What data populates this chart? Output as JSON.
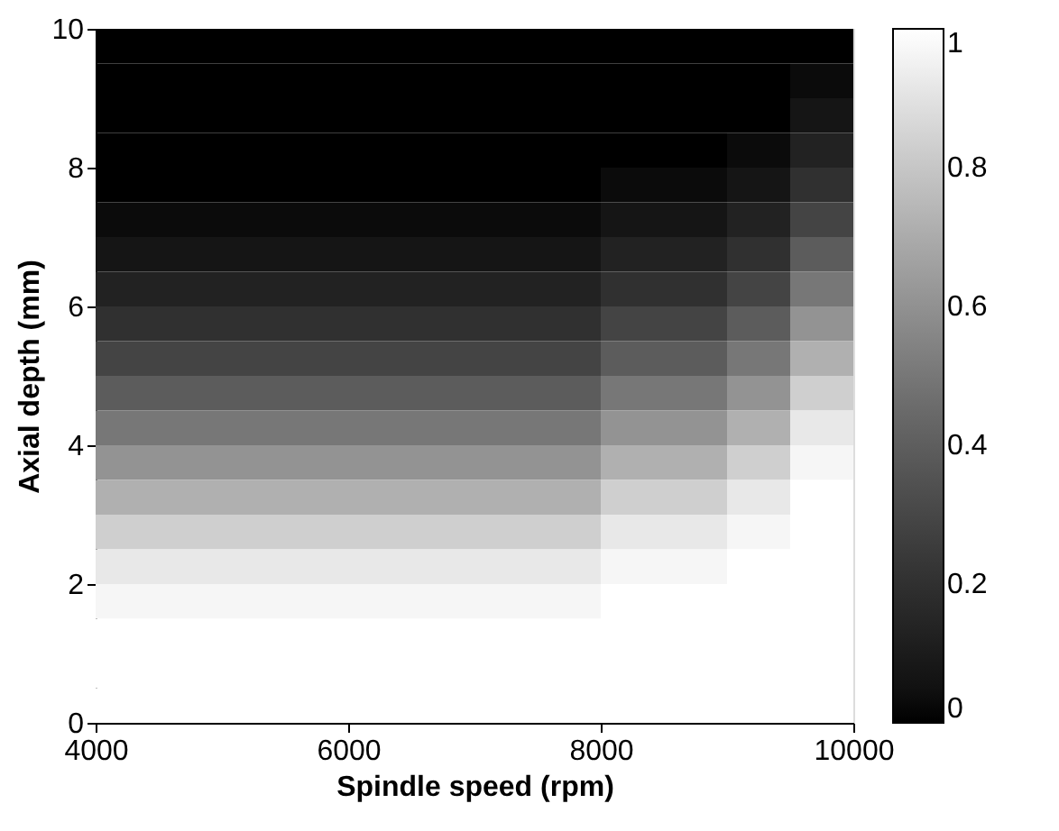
{
  "chart_data": {
    "type": "heatmap",
    "xlabel": "Spindle speed (rpm)",
    "ylabel": "Axial depth (mm)",
    "x": [
      4250,
      4750,
      5250,
      5750,
      6250,
      6750,
      7250,
      7750,
      8250,
      8750,
      9250,
      9750
    ],
    "y": [
      9.75,
      9.25,
      8.75,
      8.25,
      7.75,
      7.25,
      6.75,
      6.25,
      5.75,
      5.25,
      4.75,
      4.25,
      3.75,
      3.25,
      2.75,
      2.25,
      1.75,
      1.25,
      0.75,
      0.25
    ],
    "xlim": [
      4000,
      10000
    ],
    "xticks": [
      4000,
      6000,
      8000,
      10000
    ],
    "ylim": [
      0,
      10
    ],
    "yticks": [
      0,
      2,
      4,
      6,
      8,
      10
    ],
    "clim": [
      0,
      1
    ],
    "cticks": [
      0,
      0.2,
      0.4,
      0.6,
      0.8,
      1
    ],
    "grid": false,
    "cells": [
      [
        0,
        0,
        0,
        0,
        0,
        0,
        0,
        0,
        0,
        0,
        0,
        0
      ],
      [
        0,
        0,
        0,
        0,
        0,
        0,
        0,
        0,
        0,
        0,
        0,
        0.03
      ],
      [
        0,
        0,
        0,
        0,
        0,
        0,
        0,
        0,
        0,
        0,
        0,
        0.07
      ],
      [
        0,
        0,
        0,
        0,
        0,
        0,
        0,
        0,
        0,
        0,
        0.03,
        0.13
      ],
      [
        0,
        0,
        0,
        0,
        0,
        0,
        0,
        0,
        0.03,
        0.03,
        0.07,
        0.2
      ],
      [
        0.03,
        0.03,
        0.03,
        0.03,
        0.03,
        0.03,
        0.03,
        0.03,
        0.07,
        0.07,
        0.13,
        0.29
      ],
      [
        0.07,
        0.07,
        0.07,
        0.07,
        0.07,
        0.07,
        0.07,
        0.07,
        0.13,
        0.13,
        0.2,
        0.39
      ],
      [
        0.13,
        0.13,
        0.13,
        0.13,
        0.13,
        0.13,
        0.13,
        0.13,
        0.2,
        0.2,
        0.29,
        0.5
      ],
      [
        0.2,
        0.2,
        0.2,
        0.2,
        0.2,
        0.2,
        0.2,
        0.2,
        0.29,
        0.29,
        0.39,
        0.61
      ],
      [
        0.29,
        0.29,
        0.29,
        0.29,
        0.29,
        0.29,
        0.29,
        0.29,
        0.39,
        0.39,
        0.5,
        0.72
      ],
      [
        0.39,
        0.39,
        0.39,
        0.39,
        0.39,
        0.39,
        0.39,
        0.39,
        0.5,
        0.5,
        0.61,
        0.83
      ],
      [
        0.5,
        0.5,
        0.5,
        0.5,
        0.5,
        0.5,
        0.5,
        0.5,
        0.61,
        0.61,
        0.72,
        0.92
      ],
      [
        0.61,
        0.61,
        0.61,
        0.61,
        0.61,
        0.61,
        0.61,
        0.61,
        0.72,
        0.72,
        0.83,
        0.97
      ],
      [
        0.72,
        0.72,
        0.72,
        0.72,
        0.72,
        0.72,
        0.72,
        0.72,
        0.83,
        0.83,
        0.92,
        1
      ],
      [
        0.83,
        0.83,
        0.83,
        0.83,
        0.83,
        0.83,
        0.83,
        0.83,
        0.92,
        0.92,
        0.97,
        1
      ],
      [
        0.92,
        0.92,
        0.92,
        0.92,
        0.92,
        0.92,
        0.92,
        0.92,
        0.97,
        0.97,
        1,
        1
      ],
      [
        0.97,
        0.97,
        0.97,
        0.97,
        0.97,
        0.97,
        0.97,
        0.97,
        1,
        1,
        1,
        1
      ],
      [
        1,
        1,
        1,
        1,
        1,
        1,
        1,
        1,
        1,
        1,
        1,
        1
      ],
      [
        1,
        1,
        1,
        1,
        1,
        1,
        1,
        1,
        1,
        1,
        1,
        1
      ],
      [
        1,
        1,
        1,
        1,
        1,
        1,
        1,
        1,
        1,
        1,
        1,
        1
      ]
    ]
  }
}
